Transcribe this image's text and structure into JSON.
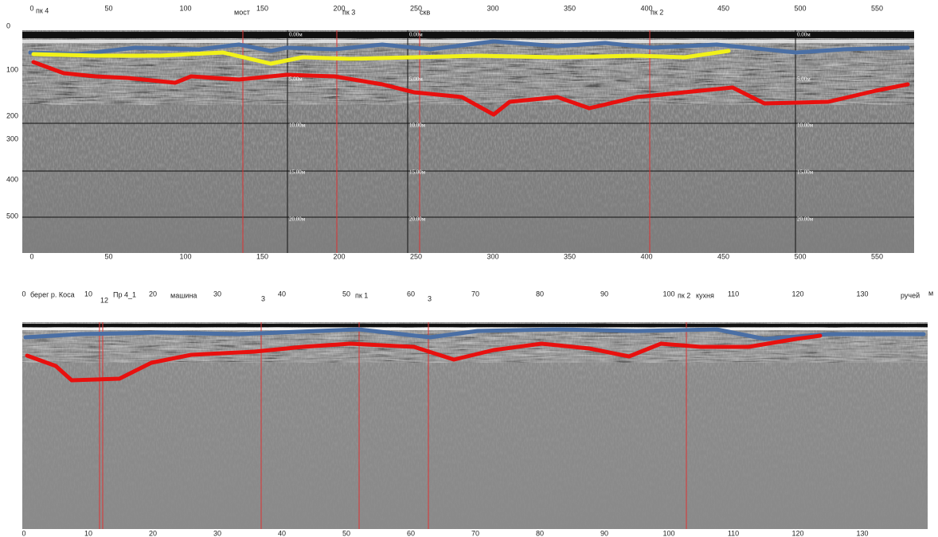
{
  "top_panel": {
    "x_ticks": [
      0,
      50,
      100,
      150,
      200,
      250,
      300,
      350,
      400,
      450,
      500,
      550
    ],
    "depth_ticks": [
      0,
      100,
      200,
      300,
      400,
      500
    ],
    "markers": [
      "пк 4",
      "мост",
      "пк 3",
      "скв",
      "пк 2"
    ],
    "depth_labels": [
      "0.00м",
      "5.00м",
      "10.00м",
      "15.00м",
      "20.00м"
    ]
  },
  "bottom_panel": {
    "x_ticks": [
      0,
      10,
      20,
      30,
      40,
      50,
      60,
      70,
      80,
      90,
      100,
      110,
      120,
      130
    ],
    "markers": [
      "берег р. Коса",
      "Пр 4_1",
      "машина",
      "пк 1",
      "пк 2",
      "кухня",
      "ручей"
    ],
    "unit": "м",
    "line_labels": [
      "12",
      "3",
      "3"
    ]
  }
}
